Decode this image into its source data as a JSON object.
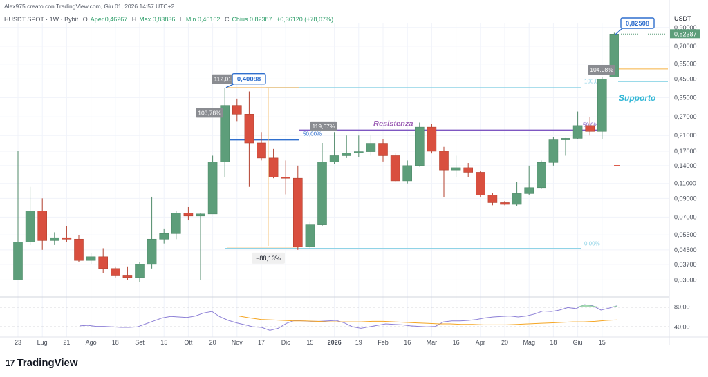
{
  "header": {
    "credit": "Alex975 creato con TradingView.com, Giu 01, 2026 14:57 UTC+2"
  },
  "symbol_info": {
    "symbol": "HUSDT SPOT · 1W · Bybit",
    "open_label": "O",
    "open_value": "Aper.0,46267",
    "high_label": "H",
    "high_value": "Max.0,83836",
    "low_label": "L",
    "low_value": "Min.0,46162",
    "close_label": "C",
    "close_value": "Chius.0,82387",
    "change": "+0,36120 (+78,07%)"
  },
  "brand": {
    "logo_mark": "17",
    "name": "TradingView"
  },
  "colors": {
    "up": "#5d9e7a",
    "down": "#d94f3f",
    "purple": "#7e57c2",
    "fib": "#8fd3e6",
    "orange": "#f5b041",
    "blue": "#2f6fce",
    "rsi_line": "#8c7fd6",
    "rsi_ma": "#f5a623",
    "grid": "#f0f3fa"
  },
  "chart_data": {
    "type": "candlestick",
    "timeframe": "1W",
    "currency": "USDT",
    "scale": "log",
    "ylim": [
      0.025,
      0.95
    ],
    "y_ticks": [
      "0,90000",
      "0,70000",
      "0,55000",
      "0,45000",
      "0,35000",
      "0,27000",
      "0,21000",
      "0,17000",
      "0,14000",
      "0,11000",
      "0,09000",
      "0,07000",
      "0,05500",
      "0,04500",
      "0,03700",
      "0,03000"
    ],
    "x_labels": [
      "23",
      "Lug",
      "21",
      "Ago",
      "18",
      "Set",
      "15",
      "Ott",
      "20",
      "Nov",
      "17",
      "Dic",
      "15",
      "2026",
      "19",
      "Feb",
      "16",
      "Mar",
      "16",
      "Apr",
      "20",
      "Mag",
      "18",
      "Giu",
      "15"
    ],
    "candles": [
      {
        "o": 0.03,
        "h": 0.17,
        "l": 0.03,
        "c": 0.05
      },
      {
        "o": 0.05,
        "h": 0.105,
        "l": 0.048,
        "c": 0.076
      },
      {
        "o": 0.076,
        "h": 0.09,
        "l": 0.045,
        "c": 0.051
      },
      {
        "o": 0.051,
        "h": 0.057,
        "l": 0.048,
        "c": 0.053
      },
      {
        "o": 0.053,
        "h": 0.062,
        "l": 0.05,
        "c": 0.052
      },
      {
        "o": 0.052,
        "h": 0.055,
        "l": 0.038,
        "c": 0.039
      },
      {
        "o": 0.039,
        "h": 0.043,
        "l": 0.037,
        "c": 0.041
      },
      {
        "o": 0.041,
        "h": 0.046,
        "l": 0.033,
        "c": 0.035
      },
      {
        "o": 0.035,
        "h": 0.036,
        "l": 0.031,
        "c": 0.032
      },
      {
        "o": 0.032,
        "h": 0.036,
        "l": 0.03,
        "c": 0.031
      },
      {
        "o": 0.031,
        "h": 0.038,
        "l": 0.029,
        "c": 0.037
      },
      {
        "o": 0.037,
        "h": 0.092,
        "l": 0.035,
        "c": 0.052
      },
      {
        "o": 0.052,
        "h": 0.06,
        "l": 0.049,
        "c": 0.056
      },
      {
        "o": 0.056,
        "h": 0.076,
        "l": 0.052,
        "c": 0.074
      },
      {
        "o": 0.074,
        "h": 0.08,
        "l": 0.067,
        "c": 0.071
      },
      {
        "o": 0.071,
        "h": 0.074,
        "l": 0.03,
        "c": 0.073
      },
      {
        "o": 0.073,
        "h": 0.16,
        "l": 0.073,
        "c": 0.147
      },
      {
        "o": 0.147,
        "h": 0.4,
        "l": 0.12,
        "c": 0.315
      },
      {
        "o": 0.315,
        "h": 0.345,
        "l": 0.255,
        "c": 0.28
      },
      {
        "o": 0.28,
        "h": 0.38,
        "l": 0.105,
        "c": 0.19
      },
      {
        "o": 0.19,
        "h": 0.22,
        "l": 0.15,
        "c": 0.155
      },
      {
        "o": 0.155,
        "h": 0.175,
        "l": 0.118,
        "c": 0.12
      },
      {
        "o": 0.12,
        "h": 0.15,
        "l": 0.095,
        "c": 0.118
      },
      {
        "o": 0.118,
        "h": 0.14,
        "l": 0.045,
        "c": 0.047
      },
      {
        "o": 0.047,
        "h": 0.066,
        "l": 0.046,
        "c": 0.063
      },
      {
        "o": 0.063,
        "h": 0.19,
        "l": 0.062,
        "c": 0.147
      },
      {
        "o": 0.147,
        "h": 0.22,
        "l": 0.143,
        "c": 0.16
      },
      {
        "o": 0.16,
        "h": 0.21,
        "l": 0.155,
        "c": 0.166
      },
      {
        "o": 0.166,
        "h": 0.21,
        "l": 0.157,
        "c": 0.169
      },
      {
        "o": 0.169,
        "h": 0.21,
        "l": 0.16,
        "c": 0.189
      },
      {
        "o": 0.189,
        "h": 0.2,
        "l": 0.148,
        "c": 0.16
      },
      {
        "o": 0.16,
        "h": 0.165,
        "l": 0.112,
        "c": 0.114
      },
      {
        "o": 0.114,
        "h": 0.15,
        "l": 0.11,
        "c": 0.14
      },
      {
        "o": 0.14,
        "h": 0.25,
        "l": 0.138,
        "c": 0.235
      },
      {
        "o": 0.235,
        "h": 0.245,
        "l": 0.165,
        "c": 0.17
      },
      {
        "o": 0.17,
        "h": 0.18,
        "l": 0.092,
        "c": 0.132
      },
      {
        "o": 0.132,
        "h": 0.16,
        "l": 0.12,
        "c": 0.136
      },
      {
        "o": 0.136,
        "h": 0.145,
        "l": 0.12,
        "c": 0.128
      },
      {
        "o": 0.128,
        "h": 0.13,
        "l": 0.092,
        "c": 0.094
      },
      {
        "o": 0.094,
        "h": 0.097,
        "l": 0.082,
        "c": 0.085
      },
      {
        "o": 0.085,
        "h": 0.087,
        "l": 0.082,
        "c": 0.083
      },
      {
        "o": 0.083,
        "h": 0.112,
        "l": 0.081,
        "c": 0.096
      },
      {
        "o": 0.096,
        "h": 0.14,
        "l": 0.094,
        "c": 0.104
      },
      {
        "o": 0.104,
        "h": 0.15,
        "l": 0.102,
        "c": 0.146
      },
      {
        "o": 0.146,
        "h": 0.205,
        "l": 0.14,
        "c": 0.198
      },
      {
        "o": 0.198,
        "h": 0.203,
        "l": 0.16,
        "c": 0.202
      },
      {
        "o": 0.202,
        "h": 0.29,
        "l": 0.2,
        "c": 0.24
      },
      {
        "o": 0.24,
        "h": 0.27,
        "l": 0.21,
        "c": 0.222
      },
      {
        "o": 0.222,
        "h": 0.46,
        "l": 0.2,
        "c": 0.45
      },
      {
        "o": 0.46267,
        "h": 0.83836,
        "l": 0.46162,
        "c": 0.82387
      }
    ],
    "annotations": {
      "resistance_label": "Resistenza",
      "support_label": "Supporto",
      "fib_50_label": "50,00%",
      "fib_100_label": "100,00%",
      "fib_0_label": "0,00%",
      "fib_50_right_label": "50,0%",
      "drop_label": "−88,13%",
      "pct_1": "103,78%",
      "pct_2": "112,01%",
      "pct_3": "119,67%",
      "pct_4": "104,08%",
      "price_tag_1": "0,40098",
      "price_tag_2": "0,82508",
      "last_price": "0,82387",
      "axis_title": "USDT"
    },
    "rsi": {
      "ticks": [
        "80,00",
        "40,00"
      ],
      "values": [
        42,
        43,
        41,
        41,
        40,
        39,
        39,
        40,
        46,
        52,
        58,
        61,
        60,
        59,
        62,
        68,
        71,
        60,
        53,
        48,
        44,
        40,
        39,
        33,
        37,
        47,
        53,
        52,
        51,
        51,
        52,
        53,
        48,
        40,
        37,
        40,
        43,
        46,
        45,
        44,
        42,
        41,
        40,
        41,
        50,
        52,
        52,
        53,
        55,
        58,
        60,
        61,
        62,
        60,
        62,
        66,
        72,
        71,
        74,
        79,
        77,
        85,
        83,
        74,
        78,
        83
      ],
      "ma_values": [
        62,
        58,
        55,
        54,
        53,
        52,
        52,
        51,
        50,
        50,
        50,
        50,
        51,
        51,
        50,
        49,
        48,
        47,
        46,
        46,
        45,
        45,
        44,
        44,
        44,
        45,
        46,
        47,
        48,
        49,
        50,
        50,
        51,
        53,
        54
      ]
    }
  }
}
